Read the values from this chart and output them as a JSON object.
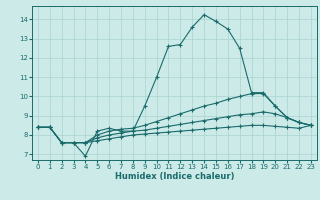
{
  "xlabel": "Humidex (Indice chaleur)",
  "bg_color": "#cceae8",
  "grid_color": "#aad4d0",
  "line_color": "#1a6b6b",
  "xlim": [
    -0.5,
    23.5
  ],
  "ylim": [
    6.7,
    14.7
  ],
  "yticks": [
    7,
    8,
    9,
    10,
    11,
    12,
    13,
    14
  ],
  "xticks": [
    0,
    1,
    2,
    3,
    4,
    5,
    6,
    7,
    8,
    9,
    10,
    11,
    12,
    13,
    14,
    15,
    16,
    17,
    18,
    19,
    20,
    21,
    22,
    23
  ],
  "series": [
    {
      "x": [
        0,
        1,
        2,
        3,
        4,
        5,
        6,
        7,
        8,
        9,
        10,
        11,
        12,
        13,
        14,
        15,
        16,
        17,
        18,
        19,
        20,
        21,
        22,
        23
      ],
      "y": [
        8.4,
        8.4,
        7.6,
        7.6,
        6.9,
        8.2,
        8.35,
        8.2,
        8.2,
        9.5,
        11.0,
        12.6,
        12.7,
        13.6,
        14.25,
        13.9,
        13.5,
        12.5,
        10.2,
        10.2,
        9.5,
        8.9,
        8.65,
        8.5
      ],
      "markers": [
        0,
        1,
        2,
        3,
        4,
        5,
        6,
        7,
        8,
        9,
        11,
        12,
        13,
        14,
        15,
        16,
        17,
        18,
        19,
        20,
        21,
        22,
        23
      ]
    },
    {
      "x": [
        0,
        1,
        2,
        3,
        4,
        5,
        6,
        7,
        8,
        9,
        10,
        11,
        12,
        13,
        14,
        15,
        16,
        17,
        18,
        19,
        20,
        21,
        22,
        23
      ],
      "y": [
        8.4,
        8.4,
        7.6,
        7.6,
        7.6,
        8.0,
        8.2,
        8.3,
        8.35,
        8.5,
        8.7,
        8.9,
        9.1,
        9.3,
        9.5,
        9.65,
        9.85,
        10.0,
        10.15,
        10.15,
        9.5,
        8.9,
        8.65,
        8.5
      ],
      "markers": [
        0,
        1,
        2,
        3,
        4,
        5,
        6,
        7,
        8,
        9,
        10,
        11,
        12,
        13,
        14,
        15,
        16,
        17,
        18,
        19,
        20,
        21,
        22,
        23
      ]
    },
    {
      "x": [
        0,
        1,
        2,
        3,
        4,
        5,
        6,
        7,
        8,
        9,
        10,
        11,
        12,
        13,
        14,
        15,
        16,
        17,
        18,
        19,
        20,
        21,
        22,
        23
      ],
      "y": [
        8.4,
        8.4,
        7.6,
        7.6,
        7.6,
        7.85,
        8.0,
        8.1,
        8.2,
        8.25,
        8.35,
        8.45,
        8.55,
        8.65,
        8.75,
        8.85,
        8.95,
        9.05,
        9.1,
        9.2,
        9.1,
        8.9,
        8.65,
        8.5
      ],
      "markers": []
    },
    {
      "x": [
        0,
        1,
        2,
        3,
        4,
        5,
        6,
        7,
        8,
        9,
        10,
        11,
        12,
        13,
        14,
        15,
        16,
        17,
        18,
        19,
        20,
        21,
        22,
        23
      ],
      "y": [
        8.4,
        8.4,
        7.6,
        7.6,
        7.6,
        7.7,
        7.8,
        7.9,
        8.0,
        8.05,
        8.1,
        8.15,
        8.2,
        8.25,
        8.3,
        8.35,
        8.4,
        8.45,
        8.5,
        8.5,
        8.45,
        8.4,
        8.35,
        8.5
      ],
      "markers": []
    }
  ]
}
